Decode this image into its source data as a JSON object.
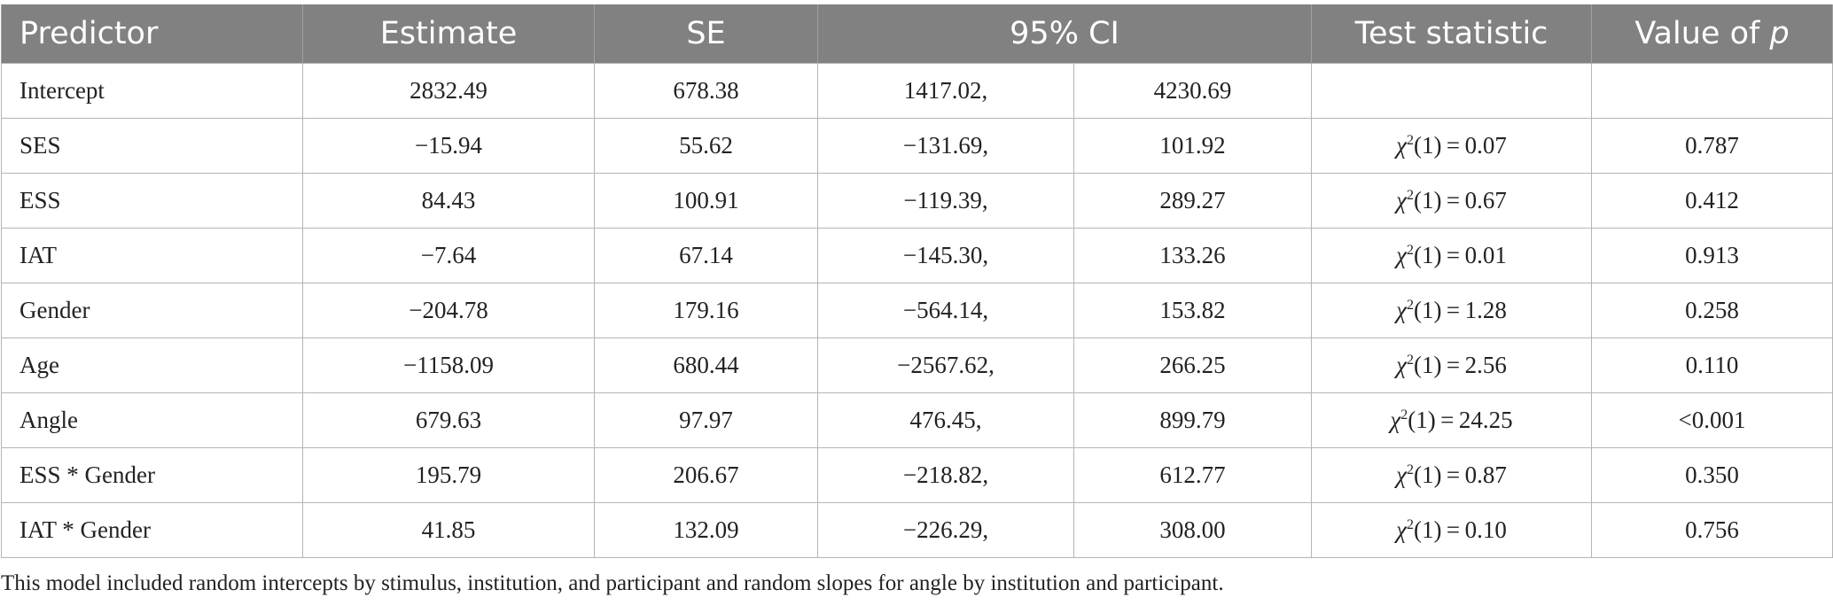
{
  "table": {
    "headers": {
      "predictor": "Predictor",
      "estimate": "Estimate",
      "se": "SE",
      "ci": "95% CI",
      "test_statistic": "Test statistic",
      "p_value_prefix": "Value of ",
      "p_value_var": "p"
    },
    "rows": [
      {
        "predictor": "Intercept",
        "estimate": "2832.49",
        "se": "678.38",
        "ci_low": "1417.02,",
        "ci_high": "4230.69",
        "chi_symbol": "",
        "chi_sup": "",
        "chi_rest": "",
        "p": ""
      },
      {
        "predictor": "SES",
        "estimate": "−15.94",
        "se": "55.62",
        "ci_low": "−131.69,",
        "ci_high": "101.92",
        "chi_symbol": "χ",
        "chi_sup": "2",
        "chi_rest": "(1) = 0.07",
        "p": "0.787"
      },
      {
        "predictor": "ESS",
        "estimate": "84.43",
        "se": "100.91",
        "ci_low": "−119.39,",
        "ci_high": "289.27",
        "chi_symbol": "χ",
        "chi_sup": "2",
        "chi_rest": "(1) = 0.67",
        "p": "0.412"
      },
      {
        "predictor": "IAT",
        "estimate": "−7.64",
        "se": "67.14",
        "ci_low": "−145.30,",
        "ci_high": "133.26",
        "chi_symbol": "χ",
        "chi_sup": "2",
        "chi_rest": "(1) = 0.01",
        "p": "0.913"
      },
      {
        "predictor": "Gender",
        "estimate": "−204.78",
        "se": "179.16",
        "ci_low": "−564.14,",
        "ci_high": "153.82",
        "chi_symbol": "χ",
        "chi_sup": "2",
        "chi_rest": "(1) = 1.28",
        "p": "0.258"
      },
      {
        "predictor": "Age",
        "estimate": "−1158.09",
        "se": "680.44",
        "ci_low": "−2567.62,",
        "ci_high": "266.25",
        "chi_symbol": "χ",
        "chi_sup": "2",
        "chi_rest": "(1) = 2.56",
        "p": "0.110"
      },
      {
        "predictor": "Angle",
        "estimate": "679.63",
        "se": "97.97",
        "ci_low": "476.45,",
        "ci_high": "899.79",
        "chi_symbol": "χ",
        "chi_sup": "2",
        "chi_rest": "(1) = 24.25",
        "p": "<0.001"
      },
      {
        "predictor": "ESS * Gender",
        "estimate": "195.79",
        "se": "206.67",
        "ci_low": "−218.82,",
        "ci_high": "612.77",
        "chi_symbol": "χ",
        "chi_sup": "2",
        "chi_rest": "(1) = 0.87",
        "p": "0.350"
      },
      {
        "predictor": "IAT * Gender",
        "estimate": "41.85",
        "se": "132.09",
        "ci_low": "−226.29,",
        "ci_high": "308.00",
        "chi_symbol": "χ",
        "chi_sup": "2",
        "chi_rest": "(1) = 0.10",
        "p": "0.756"
      }
    ]
  },
  "footnote": "This model included random intercepts by stimulus, institution, and participant and random slopes for angle by institution and participant.",
  "colors": {
    "header_bg": "#818181",
    "header_text": "#ffffff",
    "grid_line": "#b5b5b5",
    "body_text": "#222222"
  }
}
